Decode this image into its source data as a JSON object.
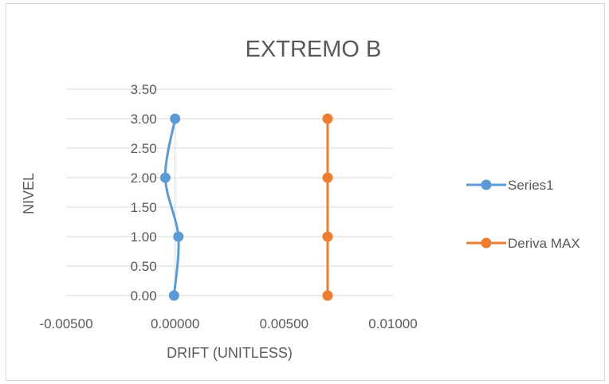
{
  "chart_data": {
    "type": "scatter",
    "title": "EXTREMO B",
    "xlabel": "DRIFT (UNITLESS)",
    "ylabel": "NIVEL",
    "xlim": [
      -0.005,
      0.01
    ],
    "ylim": [
      0,
      3.5
    ],
    "x_ticks": [
      -0.005,
      0.0,
      0.005,
      0.01
    ],
    "x_tick_labels": [
      "-0.00500",
      "0.00000",
      "0.00500",
      "0.01000"
    ],
    "y_ticks": [
      0,
      0.5,
      1.0,
      1.5,
      2.0,
      2.5,
      3.0,
      3.5
    ],
    "y_tick_labels": [
      "0.00",
      "0.50",
      "1.00",
      "1.50",
      "2.00",
      "2.50",
      "3.00",
      "3.50"
    ],
    "grid": "horizontal",
    "legend": "right",
    "series": [
      {
        "name": "Series1",
        "color": "#5b9bd5",
        "smooth": true,
        "points": [
          {
            "x": -5e-05,
            "y": 0.0
          },
          {
            "x": 0.00015,
            "y": 1.0
          },
          {
            "x": -0.00045,
            "y": 2.0
          },
          {
            "x": 0.0,
            "y": 3.0
          }
        ]
      },
      {
        "name": "Deriva MAX",
        "color": "#ed7d31",
        "smooth": false,
        "points": [
          {
            "x": 0.007,
            "y": 0.0
          },
          {
            "x": 0.007,
            "y": 1.0
          },
          {
            "x": 0.007,
            "y": 2.0
          },
          {
            "x": 0.007,
            "y": 3.0
          }
        ]
      }
    ]
  }
}
